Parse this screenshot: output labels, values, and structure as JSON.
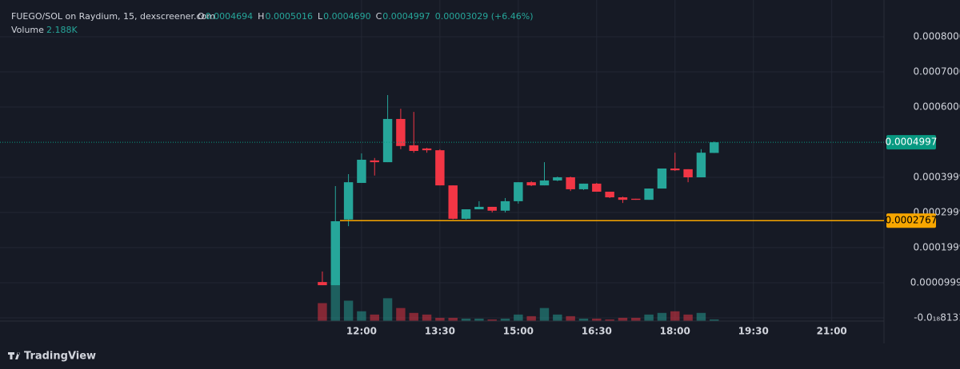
{
  "chart_data": {
    "type": "candlestick",
    "title": "FUEGO/SOL on Raydium, 15, dexscreener.com",
    "ohlc_legend": [
      {
        "label": "O",
        "value": "0.0004694"
      },
      {
        "label": "H",
        "value": "0.0005016"
      },
      {
        "label": "L",
        "value": "0.0004690"
      },
      {
        "label": "C",
        "value": "0.0004997"
      }
    ],
    "change": "0.00003029 (+6.46%)",
    "volume_label": "Volume",
    "volume_value": "2.188K",
    "footer": "TradingView",
    "up_color": "#26a69a",
    "down_color": "#f23645",
    "grid": true,
    "x": [
      11.25,
      11.5,
      11.75,
      12,
      12.25,
      12.5,
      12.75,
      13,
      13.25,
      13.5,
      13.75,
      14,
      14.25,
      14.5,
      14.75,
      15,
      15.25,
      15.5,
      15.75,
      16,
      16.25,
      16.5,
      16.75,
      17,
      17.25,
      17.5,
      17.75,
      18,
      18.25,
      18.5,
      18.75
    ],
    "open": [
      0.000102,
      9.3e-05,
      0.00028,
      0.000384,
      0.000448,
      0.000443,
      0.000566,
      0.000491,
      0.000482,
      0.000477,
      0.000377,
      0.000282,
      0.000309,
      0.000316,
      0.000305,
      0.000332,
      0.000386,
      0.000377,
      0.000391,
      0.0004,
      0.000366,
      0.000382,
      0.000359,
      0.000343,
      0.000339,
      0.000336,
      0.000368,
      0.000425,
      0.000423,
      0.0004,
      0.0004694
    ],
    "high": [
      0.000132,
      0.000375,
      0.000409,
      0.000468,
      0.000455,
      0.000634,
      0.000595,
      0.000586,
      0.000484,
      0.00048,
      0.000377,
      0.000309,
      0.000332,
      0.000316,
      0.000341,
      0.000386,
      0.000389,
      0.000443,
      0.000402,
      0.000402,
      0.000382,
      0.000384,
      0.000359,
      0.000345,
      0.000339,
      0.000368,
      0.000425,
      0.00047,
      0.000423,
      0.00048,
      0.0005016
    ],
    "low": [
      9.3e-05,
      9.3e-05,
      0.000261,
      0.000384,
      0.000405,
      0.000443,
      0.00048,
      0.00047,
      0.00047,
      0.000377,
      0.00028,
      0.00028,
      0.000309,
      0.0003,
      0.0003,
      0.000325,
      0.000375,
      0.000377,
      0.000389,
      0.000361,
      0.000364,
      0.000359,
      0.000341,
      0.000327,
      0.000336,
      0.000336,
      0.000368,
      0.000418,
      0.000386,
      0.0004,
      0.000469
    ],
    "close": [
      9.3e-05,
      0.000275,
      0.000386,
      0.00045,
      0.000443,
      0.000566,
      0.000489,
      0.000475,
      0.000477,
      0.000377,
      0.000282,
      0.000309,
      0.000316,
      0.000305,
      0.000332,
      0.000386,
      0.000377,
      0.000391,
      0.0004,
      0.000366,
      0.000382,
      0.000359,
      0.000343,
      0.000336,
      0.000336,
      0.000368,
      0.000425,
      0.00042,
      0.0004,
      0.00047,
      0.0004997
    ],
    "volume": [
      24200,
      51700,
      27500,
      13200,
      8800,
      30800,
      17600,
      11000,
      8800,
      4400,
      4400,
      3300,
      3300,
      2200,
      3300,
      8800,
      6600,
      17600,
      8800,
      6600,
      3300,
      3300,
      2200,
      4400,
      4400,
      8800,
      11000,
      13200,
      8800,
      11000,
      2188
    ],
    "xlim": [
      5.08,
      22.0
    ],
    "xticks": [
      {
        "value": 12,
        "label": "12:00"
      },
      {
        "value": 13.5,
        "label": "13:30"
      },
      {
        "value": 15,
        "label": "15:00"
      },
      {
        "value": 16.5,
        "label": "16:30"
      },
      {
        "value": 18,
        "label": "18:00"
      },
      {
        "value": 19.5,
        "label": "19:30"
      },
      {
        "value": 21,
        "label": "21:00"
      }
    ],
    "ylim": [
      -9.1e-06,
      0.0009045
    ],
    "yticks": [
      {
        "value": 0.0008,
        "label": "0.0008000"
      },
      {
        "value": 0.0007,
        "label": "0.0007000"
      },
      {
        "value": 0.0006,
        "label": "0.0006000"
      },
      0.0003999,
      0.0002999,
      0.0001999,
      9.999e-05,
      {
        "value": -8.131e-19,
        "label": "-0.0₁₈8131"
      }
    ],
    "last_price": {
      "value": 0.0004997,
      "label": "0.0004997",
      "color": "#089981"
    },
    "price_line": {
      "value": 0.0002767,
      "label": "0.0002767",
      "color": "#f7a600"
    }
  }
}
